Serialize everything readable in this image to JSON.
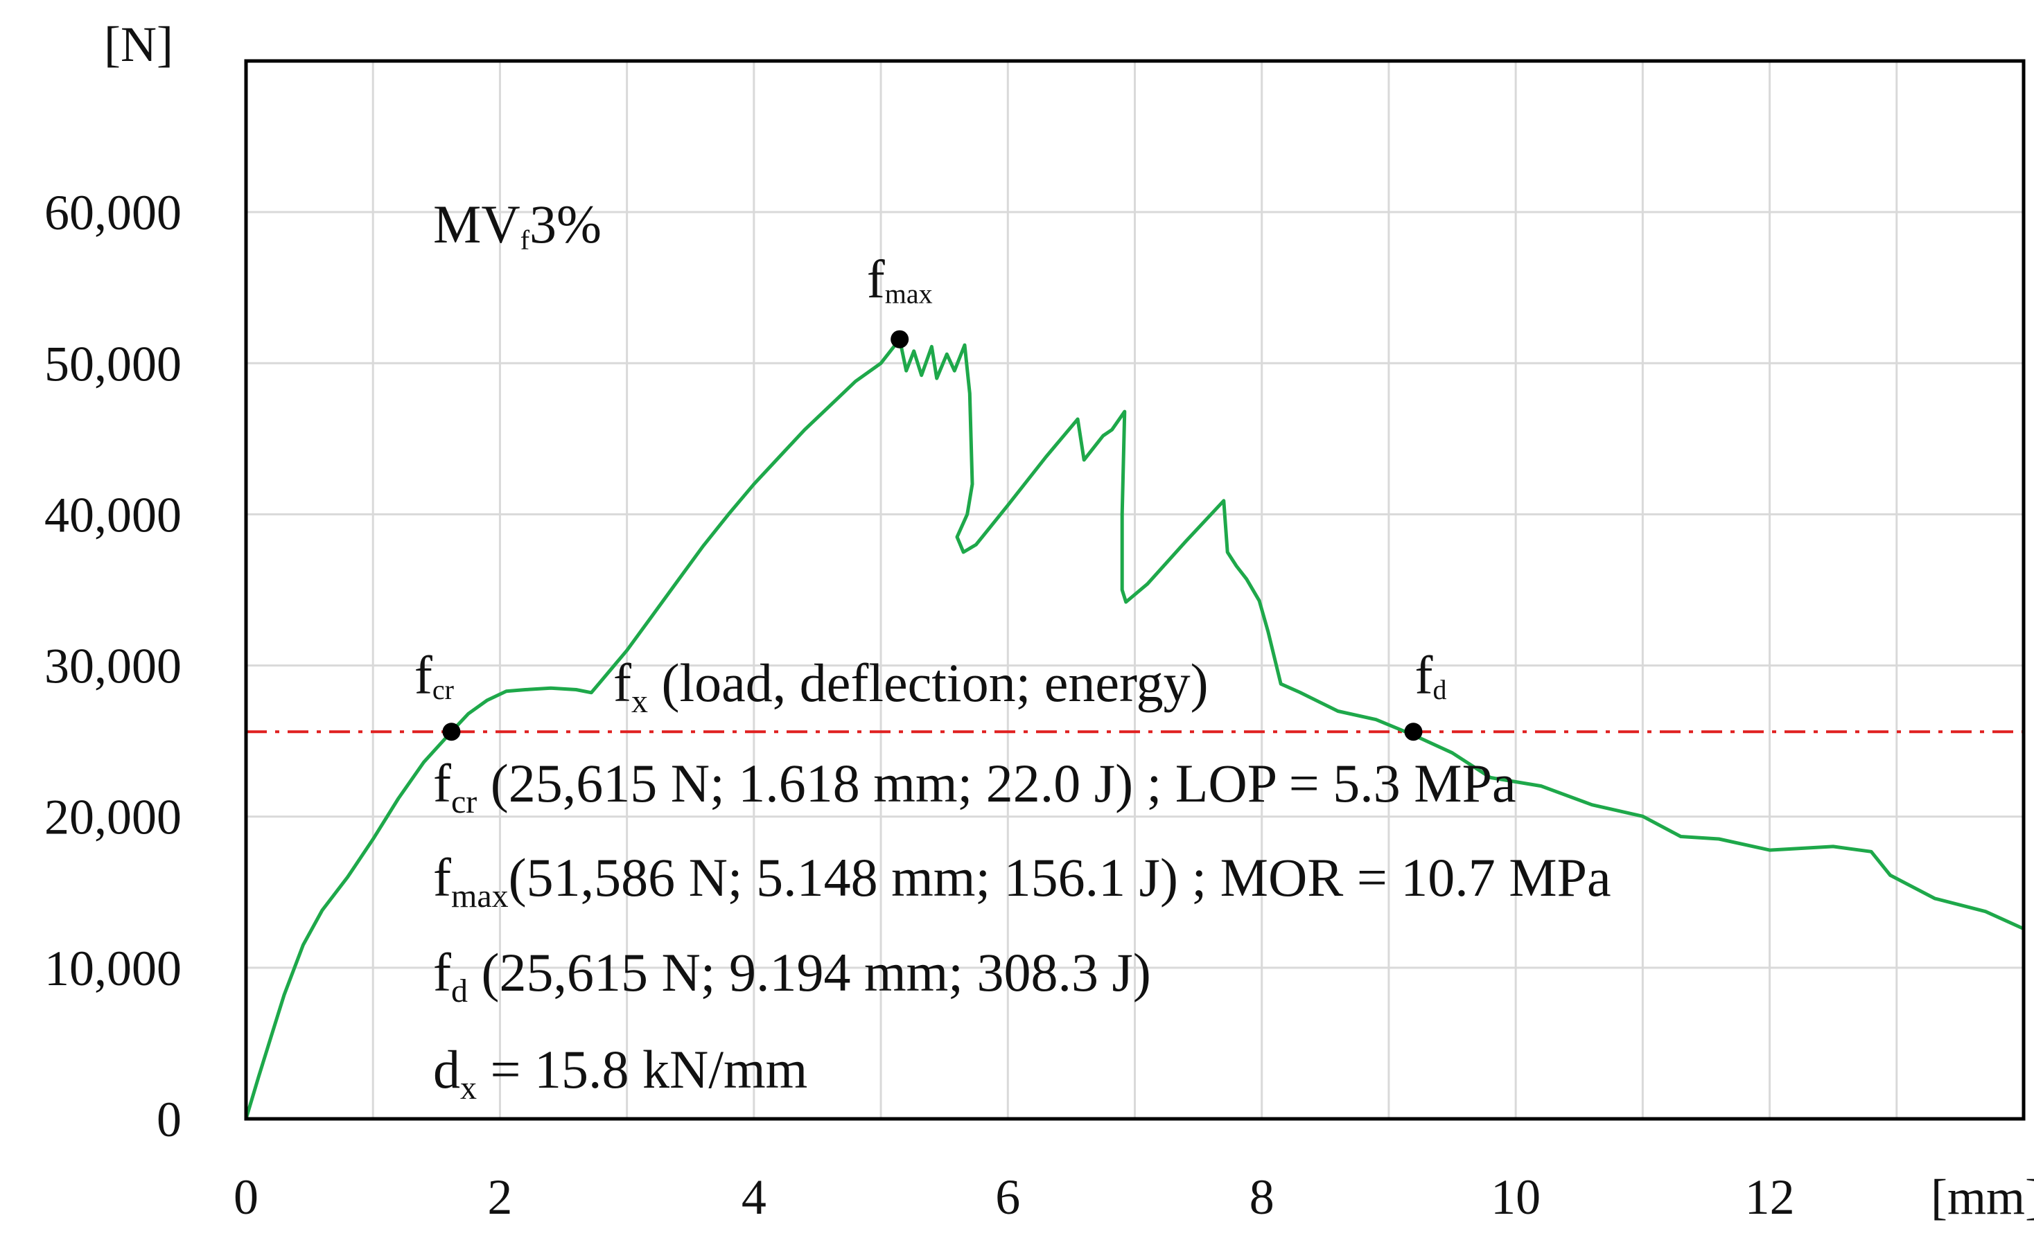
{
  "chart_data": {
    "type": "line",
    "title": "",
    "series_label": "MV",
    "series_label_sub": "f",
    "series_label_rest": "3%",
    "xlabel": "[mm]",
    "ylabel": "[N]",
    "xlim": [
      0,
      14
    ],
    "ylim": [
      0,
      70000
    ],
    "x_ticks": [
      0,
      2,
      4,
      6,
      8,
      10,
      12
    ],
    "x_tick_labels": [
      "0",
      "2",
      "4",
      "6",
      "8",
      "10",
      "12"
    ],
    "y_ticks": [
      0,
      10000,
      20000,
      30000,
      40000,
      50000,
      60000
    ],
    "y_tick_labels": [
      "0",
      "10,000",
      "20,000",
      "30,000",
      "40,000",
      "50,000",
      "60,000"
    ],
    "grid": true,
    "reference_line": {
      "y": 25615,
      "style": "dash-dot",
      "color": "#e02020"
    },
    "series": [
      {
        "name": "MVf 3%",
        "color": "#1ea84a",
        "points": [
          [
            0,
            0
          ],
          [
            0.1,
            2800
          ],
          [
            0.2,
            5500
          ],
          [
            0.3,
            8200
          ],
          [
            0.45,
            11500
          ],
          [
            0.6,
            13800
          ],
          [
            0.8,
            16000
          ],
          [
            1.0,
            18500
          ],
          [
            1.2,
            21200
          ],
          [
            1.4,
            23600
          ],
          [
            1.618,
            25615
          ],
          [
            1.75,
            26800
          ],
          [
            1.9,
            27700
          ],
          [
            2.05,
            28300
          ],
          [
            2.2,
            28400
          ],
          [
            2.4,
            28500
          ],
          [
            2.6,
            28400
          ],
          [
            2.72,
            28200
          ],
          [
            2.8,
            29000
          ],
          [
            3.0,
            31000
          ],
          [
            3.2,
            33300
          ],
          [
            3.4,
            35600
          ],
          [
            3.6,
            37900
          ],
          [
            3.8,
            40000
          ],
          [
            4.0,
            42000
          ],
          [
            4.2,
            43800
          ],
          [
            4.4,
            45600
          ],
          [
            4.6,
            47200
          ],
          [
            4.8,
            48800
          ],
          [
            5.0,
            50000
          ],
          [
            5.148,
            51586
          ],
          [
            5.2,
            49500
          ],
          [
            5.26,
            50800
          ],
          [
            5.32,
            49200
          ],
          [
            5.4,
            51100
          ],
          [
            5.44,
            49000
          ],
          [
            5.52,
            50600
          ],
          [
            5.58,
            49500
          ],
          [
            5.66,
            51200
          ],
          [
            5.7,
            48000
          ],
          [
            5.72,
            42000
          ],
          [
            5.68,
            40000
          ],
          [
            5.6,
            38500
          ],
          [
            5.65,
            37500
          ],
          [
            5.75,
            38000
          ],
          [
            6.0,
            40600
          ],
          [
            6.3,
            43800
          ],
          [
            6.55,
            46300
          ],
          [
            6.6,
            43600
          ],
          [
            6.75,
            45200
          ],
          [
            6.82,
            45600
          ],
          [
            6.92,
            46800
          ],
          [
            6.9,
            40000
          ],
          [
            6.9,
            35000
          ],
          [
            6.93,
            34200
          ],
          [
            7.1,
            35400
          ],
          [
            7.4,
            38200
          ],
          [
            7.7,
            40900
          ],
          [
            7.73,
            37500
          ],
          [
            7.8,
            36800
          ],
          [
            7.88,
            35500
          ],
          [
            7.98,
            34500
          ],
          [
            8.05,
            32000
          ],
          [
            8.15,
            29000
          ],
          [
            8.3,
            28000
          ],
          [
            8.6,
            27200
          ],
          [
            8.9,
            26200
          ],
          [
            9.194,
            25615
          ],
          [
            9.5,
            24000
          ],
          [
            9.8,
            22800
          ],
          [
            10.2,
            21800
          ],
          [
            10.6,
            21000
          ],
          [
            11.0,
            19800
          ],
          [
            11.3,
            18900
          ],
          [
            11.6,
            18300
          ],
          [
            12.0,
            18000
          ],
          [
            12.5,
            17800
          ],
          [
            12.8,
            17900
          ],
          [
            12.95,
            15900
          ],
          [
            13.3,
            14800
          ],
          [
            13.7,
            13500
          ],
          [
            14.0,
            12800
          ]
        ]
      }
    ],
    "markers": [
      {
        "label": "f",
        "sub": "cr",
        "x": 1.618,
        "y": 25615
      },
      {
        "label": "f",
        "sub": "max",
        "x": 5.148,
        "y": 51586
      },
      {
        "label": "f",
        "sub": "d",
        "x": 9.194,
        "y": 25615
      }
    ],
    "annotations": {
      "header": {
        "main": "f",
        "sub": "x",
        "rest": " (load, deflection; energy)"
      },
      "lines": [
        {
          "main": "f",
          "sub": "cr",
          "rest": "   (25,615 N; 1.618 mm; 22.0 J) ; LOP = 5.3 MPa"
        },
        {
          "main": "f",
          "sub": "max",
          "rest": "(51,586 N; 5.148 mm; 156.1 J) ; MOR = 10.7 MPa"
        },
        {
          "main": "f",
          "sub": "d",
          "rest": "    (25,615 N; 9.194 mm; 308.3 J)"
        }
      ],
      "stiffness": {
        "main": "d",
        "sub": "x",
        "rest": " = 15.8 kN/mm"
      }
    }
  }
}
